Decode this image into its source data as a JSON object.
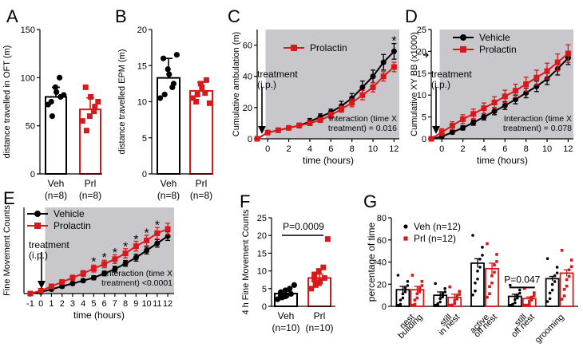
{
  "colors": {
    "vehicle": "#000000",
    "prolactin": "#d7191c",
    "shade": "#c8c8cc"
  },
  "chart_data": [
    {
      "panel": "A",
      "type": "bar",
      "categories": [
        "Veh",
        "Prl"
      ],
      "category_labels": [
        [
          "Veh",
          "(n=8)"
        ],
        [
          "Prl",
          "(n=8)"
        ]
      ],
      "values": [
        80,
        67
      ],
      "errors": [
        10,
        12
      ],
      "points": [
        [
          72,
          60,
          85,
          80,
          75,
          90,
          100,
          82
        ],
        [
          55,
          45,
          80,
          70,
          90,
          60,
          65,
          75
        ]
      ],
      "ylabel": "distance travelled in OFT (m)",
      "ylim": [
        0,
        150
      ],
      "yticks": [
        0,
        50,
        100,
        150
      ]
    },
    {
      "panel": "B",
      "type": "bar",
      "categories": [
        "Veh",
        "Prl"
      ],
      "category_labels": [
        [
          "Veh",
          "(n=8)"
        ],
        [
          "Prl",
          "(n=8)"
        ]
      ],
      "values": [
        13.3,
        11.5
      ],
      "errors": [
        2.7,
        1.2
      ],
      "points": [
        [
          10.5,
          11,
          13.8,
          12.5,
          16,
          14.5,
          12,
          16.5
        ],
        [
          10.5,
          11,
          12,
          13,
          10,
          12.5,
          11.2,
          9.8
        ]
      ],
      "ylabel": "distance travelled EPM (m)",
      "ylim": [
        0,
        20
      ],
      "yticks": [
        0,
        5,
        10,
        15,
        20
      ]
    },
    {
      "panel": "C",
      "type": "line",
      "x": [
        -1,
        0,
        1,
        2,
        3,
        4,
        5,
        6,
        7,
        8,
        9,
        10,
        11,
        12
      ],
      "series": [
        {
          "name": "Vehicle",
          "values": [
            0,
            4,
            5.5,
            7,
            8.5,
            11,
            14,
            17,
            21,
            26,
            33,
            40,
            49,
            56
          ],
          "errors": [
            0,
            1,
            1,
            1,
            1.5,
            2,
            2,
            2,
            3,
            3,
            4,
            4,
            5,
            5
          ]
        },
        {
          "name": "Prolactin",
          "values": [
            0,
            4,
            5.5,
            7,
            8.5,
            10,
            12,
            15,
            19,
            23,
            28,
            33,
            40,
            46
          ],
          "errors": [
            0,
            1,
            1,
            1,
            1,
            1.5,
            1.5,
            2,
            2,
            2.5,
            3,
            3,
            3,
            3
          ]
        }
      ],
      "legend": [
        "Prolactin"
      ],
      "xlabel": "time (hours)",
      "ylabel": "Cumulative ambulation (m)",
      "ylim": [
        0,
        70
      ],
      "yticks": [
        0,
        20,
        40,
        60
      ],
      "xticks": [
        0,
        2,
        4,
        6,
        8,
        10,
        12
      ],
      "annotation_lines": [
        "treatment",
        "(i.p.)"
      ],
      "interaction_lines": [
        "Interaction (time X",
        "treatment) = 0.016"
      ],
      "stars": [
        {
          "x": 12,
          "y": 63,
          "label": "*"
        }
      ]
    },
    {
      "panel": "D",
      "type": "line",
      "x": [
        -1,
        0,
        1,
        2,
        3,
        4,
        5,
        6,
        7,
        8,
        9,
        10,
        11,
        12
      ],
      "series": [
        {
          "name": "Vehicle",
          "values": [
            0,
            0.5,
            1.5,
            2.5,
            3.7,
            5,
            6.3,
            7.6,
            9,
            10.5,
            12,
            13.7,
            16,
            18.5
          ],
          "errors": [
            0,
            0.3,
            0.4,
            0.5,
            0.6,
            0.7,
            0.8,
            0.9,
            1,
            1.1,
            1.2,
            1.3,
            1.4,
            1.5
          ]
        },
        {
          "name": "Prolactin",
          "values": [
            0,
            1.5,
            3,
            4.5,
            5.7,
            7,
            8.3,
            9.7,
            11,
            12.5,
            14,
            15.5,
            17.5,
            19.5
          ],
          "errors": [
            0,
            0.8,
            0.9,
            1,
            1.1,
            1.2,
            1.3,
            1.4,
            1.5,
            1.6,
            1.7,
            1.8,
            1.9,
            2
          ]
        }
      ],
      "legend": [
        "Vehicle",
        "Prolactin"
      ],
      "xlabel": "time (hours)",
      "ylabel": "Cumulative XY BB (x1000)",
      "ylim": [
        0,
        25
      ],
      "yticks": [
        0,
        5,
        10,
        15,
        20,
        25
      ],
      "xticks": [
        0,
        2,
        4,
        6,
        8,
        10,
        12
      ],
      "annotation_lines": [
        "treatment",
        "(i.p.)"
      ],
      "interaction_lines": [
        "Interaction (time X",
        "treatment) = 0.078"
      ]
    },
    {
      "panel": "E",
      "type": "line",
      "x": [
        -1,
        0,
        1,
        2,
        3,
        4,
        5,
        6,
        7,
        8,
        9,
        10,
        11,
        12
      ],
      "series": [
        {
          "name": "Vehicle",
          "values": [
            0,
            0.5,
            1.5,
            2.5,
            3.5,
            4.5,
            5.5,
            7,
            8.5,
            10.5,
            12.5,
            15,
            17.5,
            20
          ],
          "errors": [
            0,
            0.3,
            0.4,
            0.5,
            0.5,
            0.6,
            0.7,
            0.8,
            1,
            1,
            1.2,
            1.2,
            1.3,
            1.5
          ]
        },
        {
          "name": "Prolactin",
          "values": [
            0,
            1,
            2.5,
            4,
            5.5,
            7,
            8.7,
            10.3,
            12,
            14,
            16.5,
            18.5,
            21,
            22.5
          ],
          "errors": [
            0,
            0.5,
            0.7,
            0.8,
            0.9,
            1,
            1.2,
            1.3,
            1.5,
            1.6,
            1.7,
            1.8,
            2,
            2
          ]
        }
      ],
      "legend": [
        "Vehicle",
        "Prolactin"
      ],
      "xlabel": "time (hours)",
      "ylabel": "Fine Movement Counts",
      "ylim": [
        0,
        30
      ],
      "xticks": [
        -1,
        0,
        1,
        2,
        3,
        4,
        5,
        6,
        7,
        8,
        9,
        10,
        11,
        12
      ],
      "annotation_lines": [
        "treatment",
        "(i.p.)"
      ],
      "interaction_lines": [
        "Interaction (time X",
        "treatment) <0.0001"
      ],
      "stars": [
        {
          "x": 5,
          "y": 11.2,
          "label": "*"
        },
        {
          "x": 6,
          "y": 12.8,
          "label": "*"
        },
        {
          "x": 7,
          "y": 14.5,
          "label": "*"
        },
        {
          "x": 8,
          "y": 16.5,
          "label": "*"
        },
        {
          "x": 9,
          "y": 19,
          "label": "*"
        },
        {
          "x": 10,
          "y": 21.3,
          "label": "*"
        },
        {
          "x": 11,
          "y": 24,
          "label": "*"
        }
      ]
    },
    {
      "panel": "F",
      "type": "bar",
      "categories": [
        "Veh",
        "Prl"
      ],
      "category_labels": [
        [
          "Veh",
          "(n=10)"
        ],
        [
          "Prl",
          "(n=10)"
        ]
      ],
      "values": [
        3.6,
        8
      ],
      "errors": [
        0.6,
        1.1
      ],
      "points": [
        [
          2,
          2.5,
          3,
          3.5,
          4,
          4.5,
          5,
          6,
          3,
          2.8
        ],
        [
          5,
          6,
          7,
          8,
          9,
          10,
          11,
          19,
          7.5,
          6.5
        ]
      ],
      "ylabel": "4 h Fine Movement Counts",
      "ylim": [
        0,
        25
      ],
      "yticks": [
        0,
        5,
        10,
        15,
        20,
        25
      ],
      "sig_label": "P=0.0009"
    },
    {
      "panel": "G",
      "type": "bar",
      "categories": [
        "nest building",
        "still in nest",
        "active off nest",
        "still off nest",
        "grooming"
      ],
      "category_labels": [
        [
          "nest",
          "building"
        ],
        [
          "still",
          "in nest"
        ],
        [
          "active",
          "off nest"
        ],
        [
          "still",
          "off nest"
        ],
        [
          "grooming"
        ]
      ],
      "series": [
        {
          "name": "Veh (n=12)",
          "values": [
            15,
            10,
            39,
            9,
            25
          ],
          "errors": [
            3,
            3,
            4,
            2,
            2
          ]
        },
        {
          "name": "Prl (n=12)",
          "values": [
            15,
            8,
            34,
            7,
            30
          ],
          "errors": [
            3,
            3,
            5,
            1.5,
            3
          ]
        }
      ],
      "ylabel": "percentage of time",
      "ylim": [
        0,
        80
      ],
      "yticks": [
        0,
        20,
        40,
        60,
        80
      ],
      "sig_label": "P=0.047"
    }
  ],
  "panel_letters": [
    "A",
    "B",
    "C",
    "D",
    "E",
    "F",
    "G"
  ]
}
